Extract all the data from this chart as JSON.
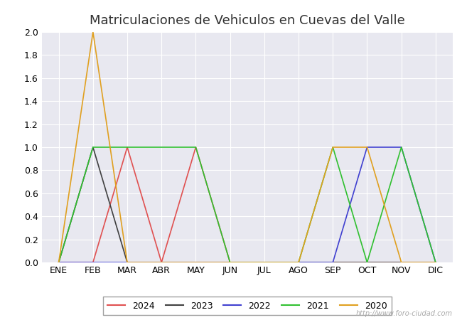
{
  "title": "Matriculaciones de Vehiculos en Cuevas del Valle",
  "months": [
    "ENE",
    "FEB",
    "MAR",
    "ABR",
    "MAY",
    "JUN",
    "JUL",
    "AGO",
    "SEP",
    "OCT",
    "NOV",
    "DIC"
  ],
  "series": {
    "2024": {
      "color": "#e05050",
      "data": [
        0,
        0,
        1,
        0,
        1,
        0,
        0,
        0,
        0,
        0,
        0,
        0
      ]
    },
    "2023": {
      "color": "#404040",
      "data": [
        0,
        1,
        0,
        0,
        0,
        0,
        0,
        0,
        0,
        0,
        0,
        0
      ]
    },
    "2022": {
      "color": "#4040d0",
      "data": [
        0,
        0,
        0,
        0,
        0,
        0,
        0,
        0,
        0,
        1,
        1,
        0
      ]
    },
    "2021": {
      "color": "#30c030",
      "data": [
        0,
        1,
        1,
        1,
        1,
        0,
        0,
        0,
        1,
        0,
        1,
        0
      ]
    },
    "2020": {
      "color": "#e0a020",
      "data": [
        0,
        2,
        0,
        0,
        0,
        0,
        0,
        0,
        1,
        1,
        0,
        0
      ]
    }
  },
  "ylim": [
    0,
    2.0
  ],
  "yticks": [
    0.0,
    0.2,
    0.4,
    0.6,
    0.8,
    1.0,
    1.2,
    1.4,
    1.6,
    1.8,
    2.0
  ],
  "background_color": "#ffffff",
  "plot_background": "#e8e8f0",
  "title_color": "#303030",
  "title_fontsize": 13,
  "watermark": "http://www.foro-ciudad.com",
  "legend_order": [
    "2024",
    "2023",
    "2022",
    "2021",
    "2020"
  ],
  "xlabel_fontsize": 9,
  "ylabel_fontsize": 9
}
